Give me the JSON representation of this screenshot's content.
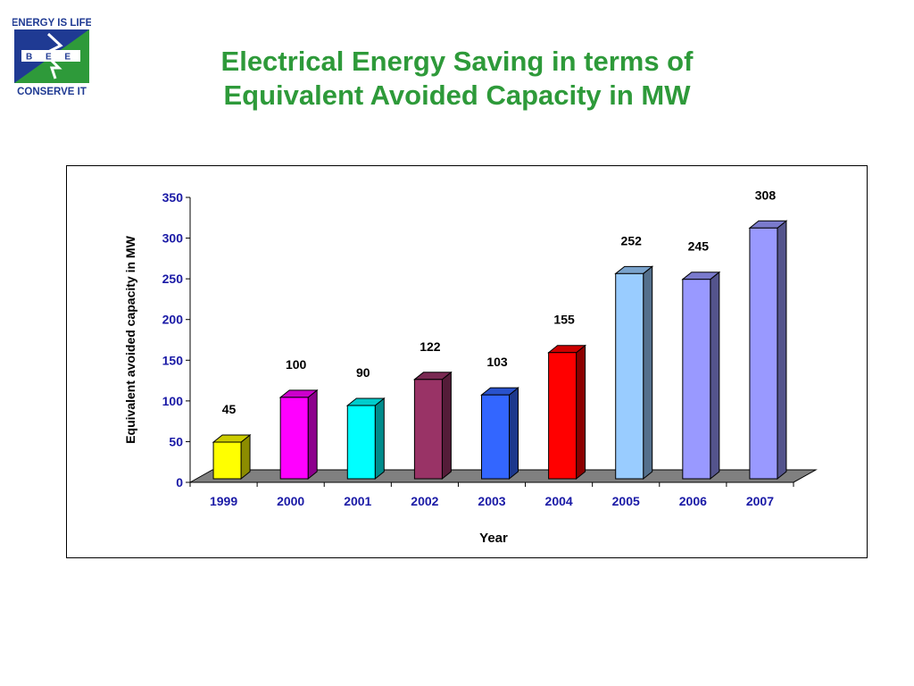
{
  "logo": {
    "top_text": "ENERGY IS LIFE",
    "middle_text": "B E E",
    "bottom_text": "CONSERVE IT",
    "colors": {
      "navy": "#1f3a93",
      "green": "#2e9a3a"
    }
  },
  "title": {
    "line1": "Electrical Energy Saving in terms of",
    "line2": "Equivalent Avoided Capacity in MW"
  },
  "chart_data": {
    "type": "bar",
    "style": "3d-column",
    "categories": [
      "1999",
      "2000",
      "2001",
      "2002",
      "2003",
      "2004",
      "2005",
      "2006",
      "2007"
    ],
    "values": [
      45,
      100,
      90,
      122,
      103,
      155,
      252,
      245,
      308
    ],
    "data_labels": [
      "45",
      "100",
      "90",
      "122",
      "103",
      "155",
      "252",
      "245",
      "308"
    ],
    "bar_colors": [
      "#ffff00",
      "#ff00ff",
      "#00ffff",
      "#993366",
      "#3366ff",
      "#ff0000",
      "#99ccff",
      "#9999ff",
      "#9999ff"
    ],
    "xlabel": "Year",
    "ylabel": "Equivalent avoided capacity in MW",
    "ylim": [
      0,
      350
    ],
    "yticks": [
      0,
      50,
      100,
      150,
      200,
      250,
      300,
      350
    ],
    "tick_label_color": "#1a1aa6",
    "floor_color": "#808080",
    "grid": false,
    "legend": false
  }
}
